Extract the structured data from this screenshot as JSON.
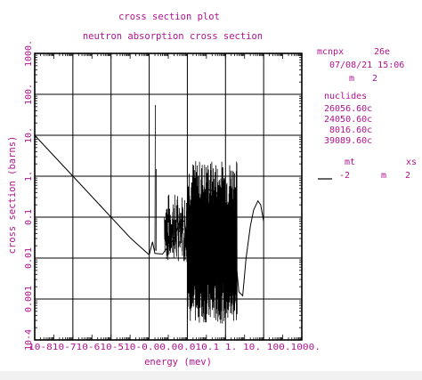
{
  "colors": {
    "text": "#b0138f",
    "plot_line": "#000000",
    "grid": "#000000",
    "background": "#ffffff"
  },
  "side_panel": {
    "code": "mcnpx",
    "version": "26e",
    "date": "07/08/21 15:06",
    "m_label": "m",
    "m_value": "2",
    "nuclides_heading": "nuclides",
    "nuclides": [
      "26056.60c",
      "24050.60c",
      "8016.60c",
      "39089.60c"
    ],
    "mt_heading": "mt",
    "xs_heading": "xs",
    "legend_line_style": "solid",
    "legend_mt": "-2",
    "legend_m": "m",
    "legend_m_value": "2"
  },
  "chart_data": {
    "type": "line",
    "title": "cross section plot",
    "subtitle": "neutron absorption cross section",
    "xlabel": "energy (mev)",
    "ylabel": "cross section (barns)",
    "x_scale": "log",
    "y_scale": "log",
    "xlim": [
      1e-11,
      1000
    ],
    "ylim": [
      0.0001,
      1000
    ],
    "x_tick_values": [
      1e-10,
      1e-09,
      1e-08,
      1e-07,
      1e-06,
      1e-05,
      0.0001,
      0.001,
      0.01,
      0.1,
      1,
      10,
      100,
      1000
    ],
    "x_tick_label_text": "10-810-710-610-510-0.00.00.010.1  1.  10. 100.1000.",
    "y_ticks": [
      {
        "value": 1000,
        "label": "1000."
      },
      {
        "value": 100,
        "label": "100."
      },
      {
        "value": 10,
        "label": "10."
      },
      {
        "value": 1,
        "label": "1."
      },
      {
        "value": 0.1,
        "label": "0.1"
      },
      {
        "value": 0.01,
        "label": "0.01"
      },
      {
        "value": 0.001,
        "label": "0.001"
      },
      {
        "value": 0.0001,
        "label": "10-4"
      }
    ],
    "grid": true,
    "legend": "right",
    "series": [
      {
        "points": [
          [
            1e-11,
            10
          ],
          [
            1e-10,
            3.16
          ],
          [
            1e-09,
            1.0
          ],
          [
            1e-08,
            0.316
          ],
          [
            1e-07,
            0.1
          ],
          [
            1e-06,
            0.0316
          ],
          [
            5e-06,
            0.016
          ],
          [
            1e-05,
            0.012
          ],
          [
            1.5e-05,
            0.025
          ],
          [
            2e-05,
            0.013
          ],
          [
            5e-05,
            0.0125
          ],
          [
            0.0002,
            0.03
          ],
          [
            0.0004,
            0.08
          ],
          [
            0.0007,
            0.08
          ],
          [
            0.001,
            0.03
          ],
          [
            0.002,
            0.05
          ],
          [
            0.005,
            0.3
          ],
          [
            0.01,
            0.5
          ],
          [
            0.03,
            0.4
          ],
          [
            0.08,
            0.3
          ],
          [
            0.15,
            0.12
          ],
          [
            0.3,
            0.02
          ],
          [
            0.5,
            0.0015
          ],
          [
            0.8,
            0.0012
          ],
          [
            1.2,
            0.01
          ],
          [
            2,
            0.06
          ],
          [
            3,
            0.15
          ],
          [
            5,
            0.25
          ],
          [
            7,
            0.2
          ],
          [
            10,
            0.08
          ]
        ]
      }
    ]
  }
}
